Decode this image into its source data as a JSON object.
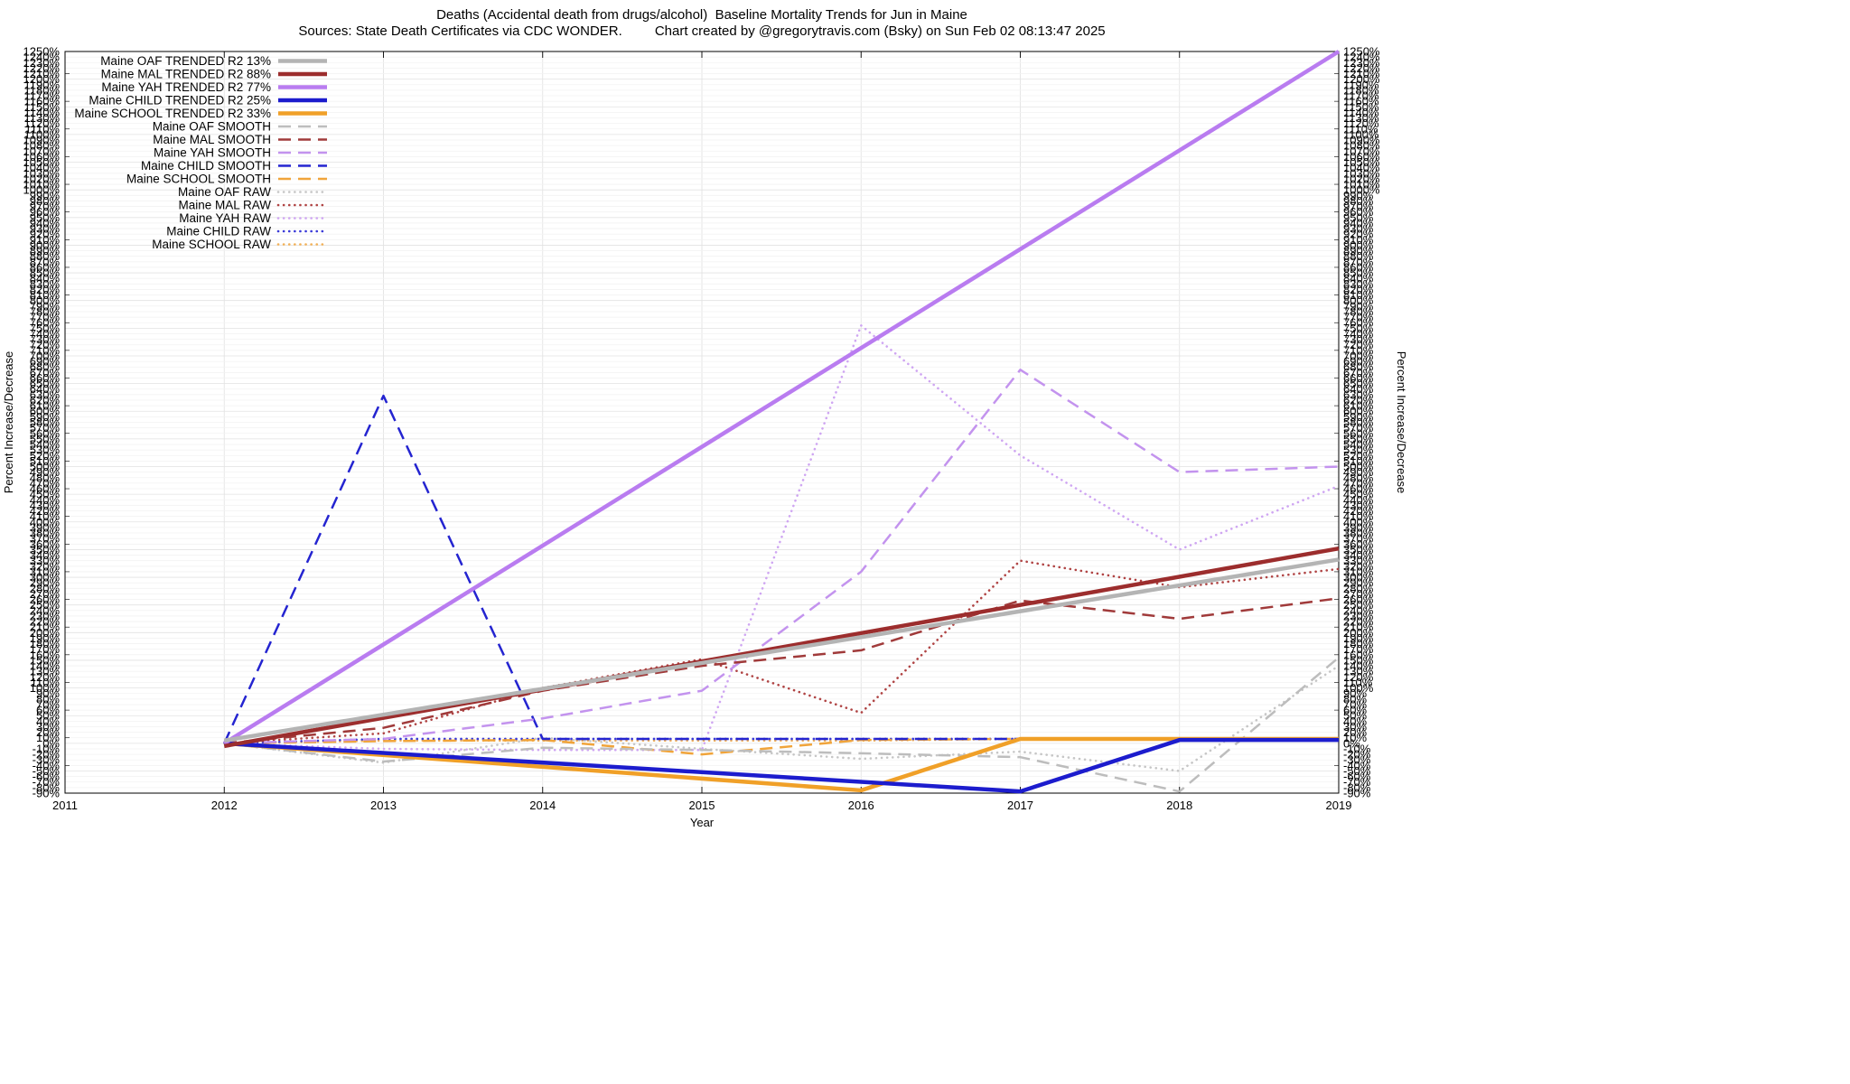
{
  "title": "Deaths (Accidental death from drugs/alcohol)  Baseline Mortality Trends for Jun in Maine",
  "subtitle": {
    "left": "Sources: State Death Certificates via CDC WONDER.",
    "right": "Chart created by @gregorytravis.com (Bsky) on Sun Feb 02 08:13:47 2025"
  },
  "chart_data": {
    "type": "line",
    "title": "Deaths (Accidental death from drugs/alcohol)  Baseline Mortality Trends for Jun in Maine",
    "xlabel": "Year",
    "ylabel_left": "Percent Increase/Decrease",
    "ylabel_right": "Percent Increase/Decrease",
    "x_ticks": [
      2011,
      2012,
      2013,
      2014,
      2015,
      2016,
      2017,
      2018,
      2019
    ],
    "xlim": [
      2011,
      2019
    ],
    "ylim": [
      -90,
      1250
    ],
    "y_tick_step": 10,
    "y_tick_suffix": "%",
    "grid": true,
    "legend_position": "top-left-inside",
    "x": [
      2012,
      2013,
      2014,
      2015,
      2016,
      2017,
      2018,
      2019
    ],
    "series": [
      {
        "id": "oaf_trended",
        "legend_label": "Maine OAF TRENDED R2  13%",
        "r2": "13%",
        "color": "#b4b4b4",
        "style": "solid",
        "x": [
          2012,
          2019
        ],
        "values": [
          5,
          332
        ]
      },
      {
        "id": "mal_trended",
        "legend_label": "Maine MAL TRENDED R2  88%",
        "r2": "88%",
        "color": "#9c2d2d",
        "style": "solid",
        "x": [
          2012,
          2019
        ],
        "values": [
          -5,
          352
        ]
      },
      {
        "id": "yah_trended",
        "legend_label": "Maine YAH TRENDED R2  77%",
        "r2": "77%",
        "color": "#b97cf0",
        "style": "solid",
        "x": [
          2012,
          2019
        ],
        "values": [
          0,
          1250
        ]
      },
      {
        "id": "child_trended",
        "legend_label": "Maine CHILD TRENDED R2  25%",
        "r2": "25%",
        "color": "#1c1ccd",
        "style": "solid",
        "x": [
          2012,
          2017,
          2018,
          2019
        ],
        "values": [
          0,
          -87,
          6,
          6
        ]
      },
      {
        "id": "school_trended",
        "legend_label": "Maine SCHOOL TRENDED R2  33%",
        "r2": "33%",
        "color": "#f0a028",
        "style": "solid",
        "x": [
          2012,
          2016,
          2017,
          2019
        ],
        "values": [
          0,
          -85,
          8,
          8
        ]
      },
      {
        "id": "oaf_smooth",
        "legend_label": "Maine OAF SMOOTH",
        "color": "#bdbdbd",
        "style": "dashed",
        "x": [
          2012,
          2013,
          2014,
          2015,
          2016,
          2017,
          2018,
          2019
        ],
        "values": [
          0,
          -33,
          -8,
          -12,
          -18,
          -25,
          -87,
          155
        ]
      },
      {
        "id": "mal_smooth",
        "legend_label": "Maine MAL SMOOTH",
        "color": "#a03a3a",
        "style": "dashed",
        "x": [
          2012,
          2013,
          2014,
          2015,
          2016,
          2017,
          2018,
          2019
        ],
        "values": [
          0,
          28,
          95,
          140,
          168,
          258,
          225,
          262
        ]
      },
      {
        "id": "yah_smooth",
        "legend_label": "Maine YAH SMOOTH",
        "color": "#c393ee",
        "style": "dashed",
        "x": [
          2012,
          2013,
          2014,
          2015,
          2016,
          2017,
          2018,
          2019
        ],
        "values": [
          0,
          8,
          45,
          95,
          310,
          675,
          490,
          500
        ]
      },
      {
        "id": "child_smooth",
        "legend_label": "Maine CHILD SMOOTH",
        "color": "#2424d0",
        "style": "dashed",
        "x": [
          2012,
          2013,
          2014,
          2015,
          2016,
          2017,
          2018,
          2019
        ],
        "values": [
          0,
          628,
          8,
          8,
          8,
          8,
          8,
          8
        ]
      },
      {
        "id": "school_smooth",
        "legend_label": "Maine SCHOOL SMOOTH",
        "color": "#f0a43a",
        "style": "dashed",
        "x": [
          2012,
          2013,
          2014,
          2015,
          2016,
          2017,
          2018,
          2019
        ],
        "values": [
          0,
          4,
          6,
          -20,
          6,
          8,
          8,
          8
        ]
      },
      {
        "id": "oaf_raw",
        "legend_label": "Maine OAF RAW",
        "color": "#c6c6c6",
        "style": "dotted",
        "x": [
          2012,
          2013,
          2014,
          2015,
          2016,
          2017,
          2018,
          2019
        ],
        "values": [
          0,
          -35,
          10,
          -10,
          -28,
          -15,
          -50,
          140
        ]
      },
      {
        "id": "mal_raw",
        "legend_label": "Maine MAL RAW",
        "color": "#b04444",
        "style": "dotted",
        "x": [
          2012,
          2013,
          2014,
          2015,
          2016,
          2017,
          2018,
          2019
        ],
        "values": [
          0,
          18,
          100,
          152,
          55,
          330,
          282,
          315
        ]
      },
      {
        "id": "yah_raw",
        "legend_label": "Maine YAH RAW",
        "color": "#cfa6f2",
        "style": "dotted",
        "x": [
          2012,
          2013,
          2014,
          2015,
          2016,
          2017,
          2018,
          2019
        ],
        "values": [
          0,
          -10,
          -12,
          -12,
          755,
          520,
          350,
          465
        ]
      },
      {
        "id": "child_raw",
        "legend_label": "Maine CHILD RAW",
        "color": "#3a3ad8",
        "style": "dotted",
        "x": [
          2012,
          2013,
          2014,
          2015,
          2016,
          2017,
          2018,
          2019
        ],
        "values": [
          0,
          8,
          8,
          8,
          8,
          8,
          8,
          8
        ]
      },
      {
        "id": "school_raw",
        "legend_label": "Maine SCHOOL RAW",
        "color": "#f2b158",
        "style": "dotted",
        "x": [
          2012,
          2013,
          2014,
          2015,
          2016,
          2017,
          2018,
          2019
        ],
        "values": [
          0,
          5,
          5,
          5,
          5,
          8,
          8,
          8
        ]
      }
    ]
  }
}
